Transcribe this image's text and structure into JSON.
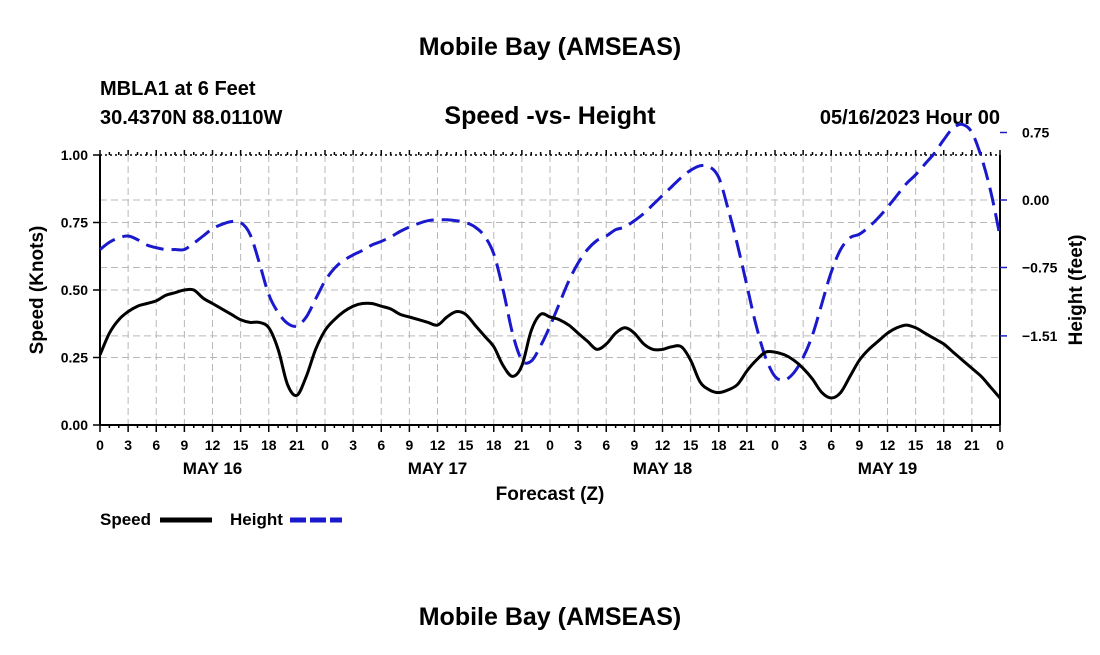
{
  "header": {
    "title": "Mobile Bay (AMSEAS)",
    "station": "MBLA1 at 6 Feet",
    "coords": "30.4370N  88.0110W",
    "chart_title": "Speed -vs- Height",
    "datetime": "05/16/2023 Hour 00"
  },
  "footer": {
    "title": "Mobile Bay (AMSEAS)"
  },
  "colors": {
    "speed": "#000000",
    "height": "#1a1acc",
    "grid": "#b8b8b8"
  },
  "chart_data": {
    "type": "line",
    "title": "Speed -vs- Height",
    "xlabel": "Forecast (Z)",
    "ylabel_left": "Speed (Knots)",
    "ylabel_right": "Height (feet)",
    "x_range": [
      0,
      96
    ],
    "y_left_range": [
      0,
      1.0
    ],
    "y_right_range": [
      -2.5,
      0.5
    ],
    "x_tick_labels": [
      "0",
      "3",
      "6",
      "9",
      "12",
      "15",
      "18",
      "21",
      "0",
      "3",
      "6",
      "9",
      "12",
      "15",
      "18",
      "21",
      "0",
      "3",
      "6",
      "9",
      "12",
      "15",
      "18",
      "21",
      "0",
      "3",
      "6",
      "9",
      "12",
      "15",
      "18",
      "21",
      "0"
    ],
    "day_labels": [
      {
        "label": "MAY 16",
        "hour": 12
      },
      {
        "label": "MAY 17",
        "hour": 36
      },
      {
        "label": "MAY 18",
        "hour": 60
      },
      {
        "label": "MAY 19",
        "hour": 84
      }
    ],
    "left_ticks": [
      {
        "value": 0,
        "label": "0.00"
      },
      {
        "value": 0.25,
        "label": "0.25"
      },
      {
        "value": 0.5,
        "label": "0.50"
      },
      {
        "value": 0.75,
        "label": "0.75"
      },
      {
        "value": 1.0,
        "label": "1.00"
      }
    ],
    "right_ticks": [
      {
        "value": 0.75,
        "label": "0.75"
      },
      {
        "value": 0.0,
        "label": "0.00"
      },
      {
        "value": -0.75,
        "label": "−0.75"
      },
      {
        "value": -1.51,
        "label": "−1.51"
      }
    ],
    "legend_position": "bottom-left",
    "series": [
      {
        "name": "Speed",
        "axis": "left",
        "style": "solid",
        "points": [
          [
            0,
            0.26
          ],
          [
            1,
            0.34
          ],
          [
            2,
            0.39
          ],
          [
            3,
            0.42
          ],
          [
            4,
            0.44
          ],
          [
            5,
            0.45
          ],
          [
            6,
            0.46
          ],
          [
            7,
            0.48
          ],
          [
            8,
            0.49
          ],
          [
            9,
            0.5
          ],
          [
            10,
            0.5
          ],
          [
            11,
            0.47
          ],
          [
            12,
            0.45
          ],
          [
            13,
            0.43
          ],
          [
            14,
            0.41
          ],
          [
            15,
            0.39
          ],
          [
            16,
            0.38
          ],
          [
            17,
            0.38
          ],
          [
            18,
            0.36
          ],
          [
            19,
            0.28
          ],
          [
            20,
            0.15
          ],
          [
            21,
            0.11
          ],
          [
            22,
            0.18
          ],
          [
            23,
            0.28
          ],
          [
            24,
            0.35
          ],
          [
            25,
            0.39
          ],
          [
            26,
            0.42
          ],
          [
            27,
            0.44
          ],
          [
            28,
            0.45
          ],
          [
            29,
            0.45
          ],
          [
            30,
            0.44
          ],
          [
            31,
            0.43
          ],
          [
            32,
            0.41
          ],
          [
            33,
            0.4
          ],
          [
            34,
            0.39
          ],
          [
            35,
            0.38
          ],
          [
            36,
            0.37
          ],
          [
            37,
            0.4
          ],
          [
            38,
            0.42
          ],
          [
            39,
            0.41
          ],
          [
            40,
            0.37
          ],
          [
            41,
            0.33
          ],
          [
            42,
            0.29
          ],
          [
            43,
            0.22
          ],
          [
            44,
            0.18
          ],
          [
            45,
            0.22
          ],
          [
            46,
            0.35
          ],
          [
            47,
            0.41
          ],
          [
            48,
            0.4
          ],
          [
            49,
            0.39
          ],
          [
            50,
            0.37
          ],
          [
            51,
            0.34
          ],
          [
            52,
            0.31
          ],
          [
            53,
            0.28
          ],
          [
            54,
            0.3
          ],
          [
            55,
            0.34
          ],
          [
            56,
            0.36
          ],
          [
            57,
            0.34
          ],
          [
            58,
            0.3
          ],
          [
            59,
            0.28
          ],
          [
            60,
            0.28
          ],
          [
            61,
            0.29
          ],
          [
            62,
            0.29
          ],
          [
            63,
            0.24
          ],
          [
            64,
            0.16
          ],
          [
            65,
            0.13
          ],
          [
            66,
            0.12
          ],
          [
            67,
            0.13
          ],
          [
            68,
            0.15
          ],
          [
            69,
            0.2
          ],
          [
            70,
            0.24
          ],
          [
            71,
            0.27
          ],
          [
            72,
            0.27
          ],
          [
            73,
            0.26
          ],
          [
            74,
            0.24
          ],
          [
            75,
            0.21
          ],
          [
            76,
            0.17
          ],
          [
            77,
            0.12
          ],
          [
            78,
            0.1
          ],
          [
            79,
            0.12
          ],
          [
            80,
            0.18
          ],
          [
            81,
            0.24
          ],
          [
            82,
            0.28
          ],
          [
            83,
            0.31
          ],
          [
            84,
            0.34
          ],
          [
            85,
            0.36
          ],
          [
            86,
            0.37
          ],
          [
            87,
            0.36
          ],
          [
            88,
            0.34
          ],
          [
            89,
            0.32
          ],
          [
            90,
            0.3
          ],
          [
            91,
            0.27
          ],
          [
            92,
            0.24
          ],
          [
            93,
            0.21
          ],
          [
            94,
            0.18
          ],
          [
            95,
            0.14
          ],
          [
            96,
            0.1
          ]
        ]
      },
      {
        "name": "Height",
        "axis": "right",
        "style": "dashed",
        "points": [
          [
            0,
            -0.55
          ],
          [
            1,
            -0.47
          ],
          [
            2,
            -0.42
          ],
          [
            3,
            -0.4
          ],
          [
            4,
            -0.44
          ],
          [
            5,
            -0.5
          ],
          [
            6,
            -0.53
          ],
          [
            7,
            -0.55
          ],
          [
            8,
            -0.55
          ],
          [
            9,
            -0.55
          ],
          [
            10,
            -0.48
          ],
          [
            11,
            -0.4
          ],
          [
            12,
            -0.32
          ],
          [
            13,
            -0.27
          ],
          [
            14,
            -0.24
          ],
          [
            15,
            -0.25
          ],
          [
            16,
            -0.38
          ],
          [
            17,
            -0.7
          ],
          [
            18,
            -1.05
          ],
          [
            19,
            -1.25
          ],
          [
            20,
            -1.37
          ],
          [
            21,
            -1.4
          ],
          [
            22,
            -1.3
          ],
          [
            23,
            -1.1
          ],
          [
            24,
            -0.9
          ],
          [
            25,
            -0.76
          ],
          [
            26,
            -0.67
          ],
          [
            27,
            -0.61
          ],
          [
            28,
            -0.56
          ],
          [
            29,
            -0.5
          ],
          [
            30,
            -0.46
          ],
          [
            31,
            -0.41
          ],
          [
            32,
            -0.35
          ],
          [
            33,
            -0.3
          ],
          [
            34,
            -0.26
          ],
          [
            35,
            -0.23
          ],
          [
            36,
            -0.22
          ],
          [
            37,
            -0.22
          ],
          [
            38,
            -0.23
          ],
          [
            39,
            -0.25
          ],
          [
            40,
            -0.3
          ],
          [
            41,
            -0.4
          ],
          [
            42,
            -0.6
          ],
          [
            43,
            -1.0
          ],
          [
            44,
            -1.48
          ],
          [
            45,
            -1.78
          ],
          [
            46,
            -1.79
          ],
          [
            47,
            -1.62
          ],
          [
            48,
            -1.4
          ],
          [
            49,
            -1.15
          ],
          [
            50,
            -0.9
          ],
          [
            51,
            -0.7
          ],
          [
            52,
            -0.55
          ],
          [
            53,
            -0.45
          ],
          [
            54,
            -0.4
          ],
          [
            55,
            -0.33
          ],
          [
            56,
            -0.3
          ],
          [
            57,
            -0.23
          ],
          [
            58,
            -0.15
          ],
          [
            59,
            -0.05
          ],
          [
            60,
            0.05
          ],
          [
            61,
            0.15
          ],
          [
            62,
            0.25
          ],
          [
            63,
            0.33
          ],
          [
            64,
            0.38
          ],
          [
            65,
            0.37
          ],
          [
            66,
            0.25
          ],
          [
            67,
            -0.1
          ],
          [
            68,
            -0.5
          ],
          [
            69,
            -0.95
          ],
          [
            70,
            -1.4
          ],
          [
            71,
            -1.75
          ],
          [
            72,
            -1.96
          ],
          [
            73,
            -2.0
          ],
          [
            74,
            -1.92
          ],
          [
            75,
            -1.75
          ],
          [
            76,
            -1.5
          ],
          [
            77,
            -1.15
          ],
          [
            78,
            -0.8
          ],
          [
            79,
            -0.55
          ],
          [
            80,
            -0.42
          ],
          [
            81,
            -0.38
          ],
          [
            82,
            -0.3
          ],
          [
            83,
            -0.2
          ],
          [
            84,
            -0.08
          ],
          [
            85,
            0.05
          ],
          [
            86,
            0.18
          ],
          [
            87,
            0.28
          ],
          [
            88,
            0.4
          ],
          [
            89,
            0.52
          ],
          [
            90,
            0.67
          ],
          [
            91,
            0.8
          ],
          [
            92,
            0.84
          ],
          [
            93,
            0.75
          ],
          [
            94,
            0.48
          ],
          [
            95,
            0.1
          ],
          [
            96,
            -0.4
          ]
        ]
      }
    ]
  }
}
